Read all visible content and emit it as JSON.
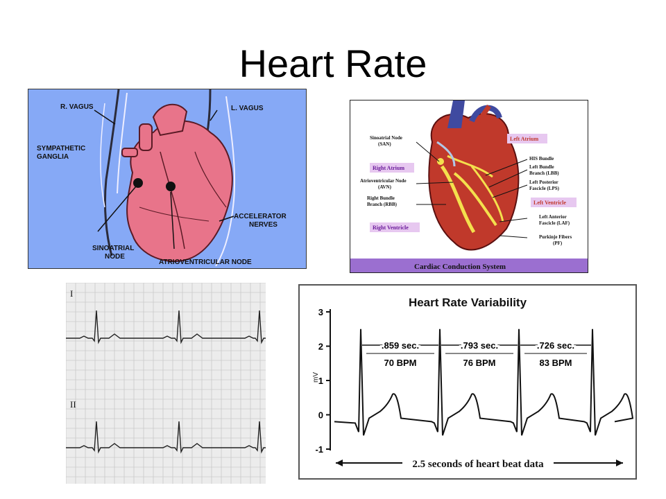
{
  "slide": {
    "title": "Heart Rate"
  },
  "innervation_figure": {
    "labels": {
      "r_vagus": "R. VAGUS",
      "l_vagus": "L. VAGUS",
      "sympathetic_1": "SYMPATHETIC",
      "sympathetic_2": "GANGLIA",
      "accelerator_1": "ACCELERATOR",
      "accelerator_2": "NERVES",
      "sinoatrial_1": "SINOATRIAL",
      "sinoatrial_2": "NODE",
      "av_node": "ATRIOVENTRICULAR NODE"
    },
    "colors": {
      "background": "#86a9f6",
      "heart": "#e8748a"
    }
  },
  "conduction_figure": {
    "caption": "Cardiac Conduction System",
    "labels": {
      "san_1": "Sinoatrial Node",
      "san_2": "(SAN)",
      "right_atrium": "Right Atrium",
      "avn_1": "Atrioventricular Node",
      "avn_2": "(AVN)",
      "rbb_1": "Right Bundle",
      "rbb_2": "Branch (RBB)",
      "right_ventricle": "Right Ventricle",
      "left_atrium": "Left Atrium",
      "his": "HIS Bundle",
      "lbb_1": "Left Bundle",
      "lbb_2": "Branch (LBB)",
      "lps_1": "Left Posterior",
      "lps_2": "Fascicle (LPS)",
      "left_ventricle": "Left Ventricle",
      "laf_1": "Left Anterior",
      "laf_2": "Fascicle (LAF)",
      "pf_1": "Purkinje Fibers",
      "pf_2": "(PF)"
    },
    "colors": {
      "caption_bar": "#9b6fd0",
      "label_box": "#e7c8f0"
    }
  },
  "ecg_strip": {
    "leads": [
      "I",
      "II"
    ]
  },
  "chart_data": {
    "type": "line",
    "title": "Heart Rate Variability",
    "ylabel": "mV",
    "ylim": [
      -1,
      3
    ],
    "yticks": [
      3,
      2,
      1,
      0,
      -1
    ],
    "intervals": [
      {
        "seconds": ".859 sec.",
        "bpm": "70 BPM"
      },
      {
        "seconds": ".793 sec.",
        "bpm": "76 BPM"
      },
      {
        "seconds": ".726 sec.",
        "bpm": "83 BPM"
      }
    ],
    "footer": "2.5 seconds of heart beat data"
  }
}
